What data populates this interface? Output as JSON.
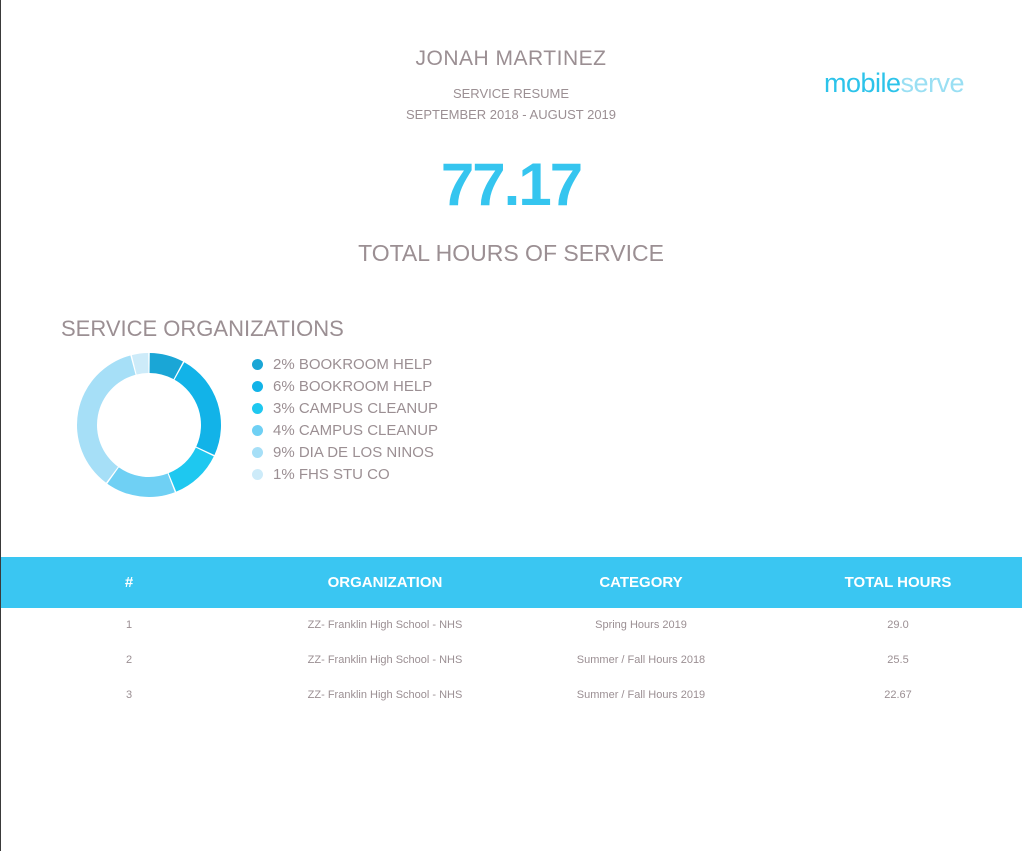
{
  "header": {
    "name": "JONAH MARTINEZ",
    "subtitle": "SERVICE RESUME",
    "date_range": "SEPTEMBER 2018 - AUGUST 2019"
  },
  "logo": {
    "part1": "mobile",
    "part2": "serve"
  },
  "summary": {
    "total_hours": "77.17",
    "total_label": "TOTAL HOURS OF SERVICE"
  },
  "organizations": {
    "title": "SERVICE ORGANIZATIONS"
  },
  "chart_data": {
    "type": "pie",
    "categories": [
      "2% BOOKROOM HELP",
      "6% BOOKROOM HELP",
      "3% CAMPUS CLEANUP",
      "4% CAMPUS CLEANUP",
      "9% DIA DE LOS NINOS",
      "1% FHS STU CO"
    ],
    "values": [
      2,
      6,
      3,
      4,
      9,
      1
    ],
    "colors": [
      "#1aa6d6",
      "#12b3e8",
      "#1ec8f0",
      "#6fd0f4",
      "#a6dff7",
      "#cdebf9"
    ],
    "legend": "right"
  },
  "table": {
    "headers": [
      "#",
      "ORGANIZATION",
      "CATEGORY",
      "TOTAL HOURS"
    ],
    "rows": [
      {
        "num": "1",
        "organization": "ZZ- Franklin High School - NHS",
        "category": "Spring Hours 2019",
        "hours": "29.0"
      },
      {
        "num": "2",
        "organization": "ZZ- Franklin High School - NHS",
        "category": "Summer / Fall Hours 2018",
        "hours": "25.5"
      },
      {
        "num": "3",
        "organization": "ZZ- Franklin High School - NHS",
        "category": "Summer / Fall Hours 2019",
        "hours": "22.67"
      }
    ]
  }
}
